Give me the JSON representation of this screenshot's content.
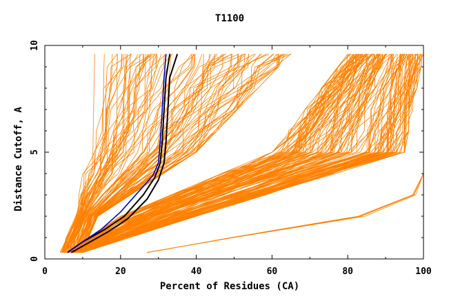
{
  "chart_data": {
    "type": "line",
    "title": "T1100",
    "xlabel": "Percent of Residues (CA)",
    "ylabel": "Distance Cutoff, A",
    "xlim": [
      0,
      100
    ],
    "ylim": [
      0,
      10
    ],
    "x_ticks": [
      "0",
      "20",
      "40",
      "60",
      "80",
      "100"
    ],
    "x_tick_values": [
      0,
      20,
      40,
      60,
      80,
      100
    ],
    "y_ticks": [
      "0",
      "5",
      "10"
    ],
    "y_tick_values": [
      0,
      5,
      10
    ],
    "grid": false,
    "legend": "none",
    "colors": {
      "models": "#ff8000",
      "highlight_outer": "#000000",
      "highlight_inner": "#0000cc"
    },
    "groups": [
      {
        "kind": "model-bundle",
        "color": "#ff8000",
        "count": 90,
        "x_at_0_3": [
          4,
          10
        ],
        "x_at_2": [
          8,
          14
        ],
        "x_at_5": [
          11,
          40
        ],
        "x_at_9_6": [
          13,
          65
        ]
      },
      {
        "kind": "model-bundle",
        "color": "#ff8000",
        "count": 130,
        "x_at_0_3": [
          6,
          10
        ],
        "x_at_2": [
          20,
          40
        ],
        "x_at_5": [
          60,
          95
        ],
        "x_at_9_6": [
          80,
          100
        ]
      },
      {
        "kind": "model-bundle",
        "color": "#ff8000",
        "count": 5,
        "x_at_0_3": [
          27,
          27
        ],
        "x_at_1": [
          48,
          50
        ],
        "x_at_2": [
          80,
          85
        ],
        "x_at_3": [
          96,
          98
        ],
        "x_at_4": [
          100,
          100
        ]
      }
    ],
    "highlight_series": [
      {
        "color": "#000000",
        "x": [
          6,
          10,
          16,
          21,
          26,
          29,
          30.5,
          31,
          31.5,
          32,
          33
        ],
        "y": [
          0.3,
          0.8,
          1.4,
          2.0,
          3.0,
          3.8,
          4.5,
          5.5,
          7.0,
          8.5,
          9.6
        ]
      },
      {
        "color": "#000000",
        "x": [
          7,
          11,
          17,
          22,
          27,
          30,
          31.5,
          32,
          32.5,
          33,
          35
        ],
        "y": [
          0.3,
          0.7,
          1.3,
          1.9,
          2.8,
          3.7,
          4.5,
          5.5,
          7.0,
          8.5,
          9.6
        ]
      },
      {
        "color": "#0000cc",
        "x": [
          6,
          10,
          15,
          20,
          25,
          28.5,
          30,
          30.5,
          31,
          31.5,
          32
        ],
        "y": [
          0.3,
          0.8,
          1.4,
          2.2,
          3.2,
          3.9,
          4.5,
          5.5,
          7.0,
          8.5,
          9.6
        ]
      }
    ]
  }
}
